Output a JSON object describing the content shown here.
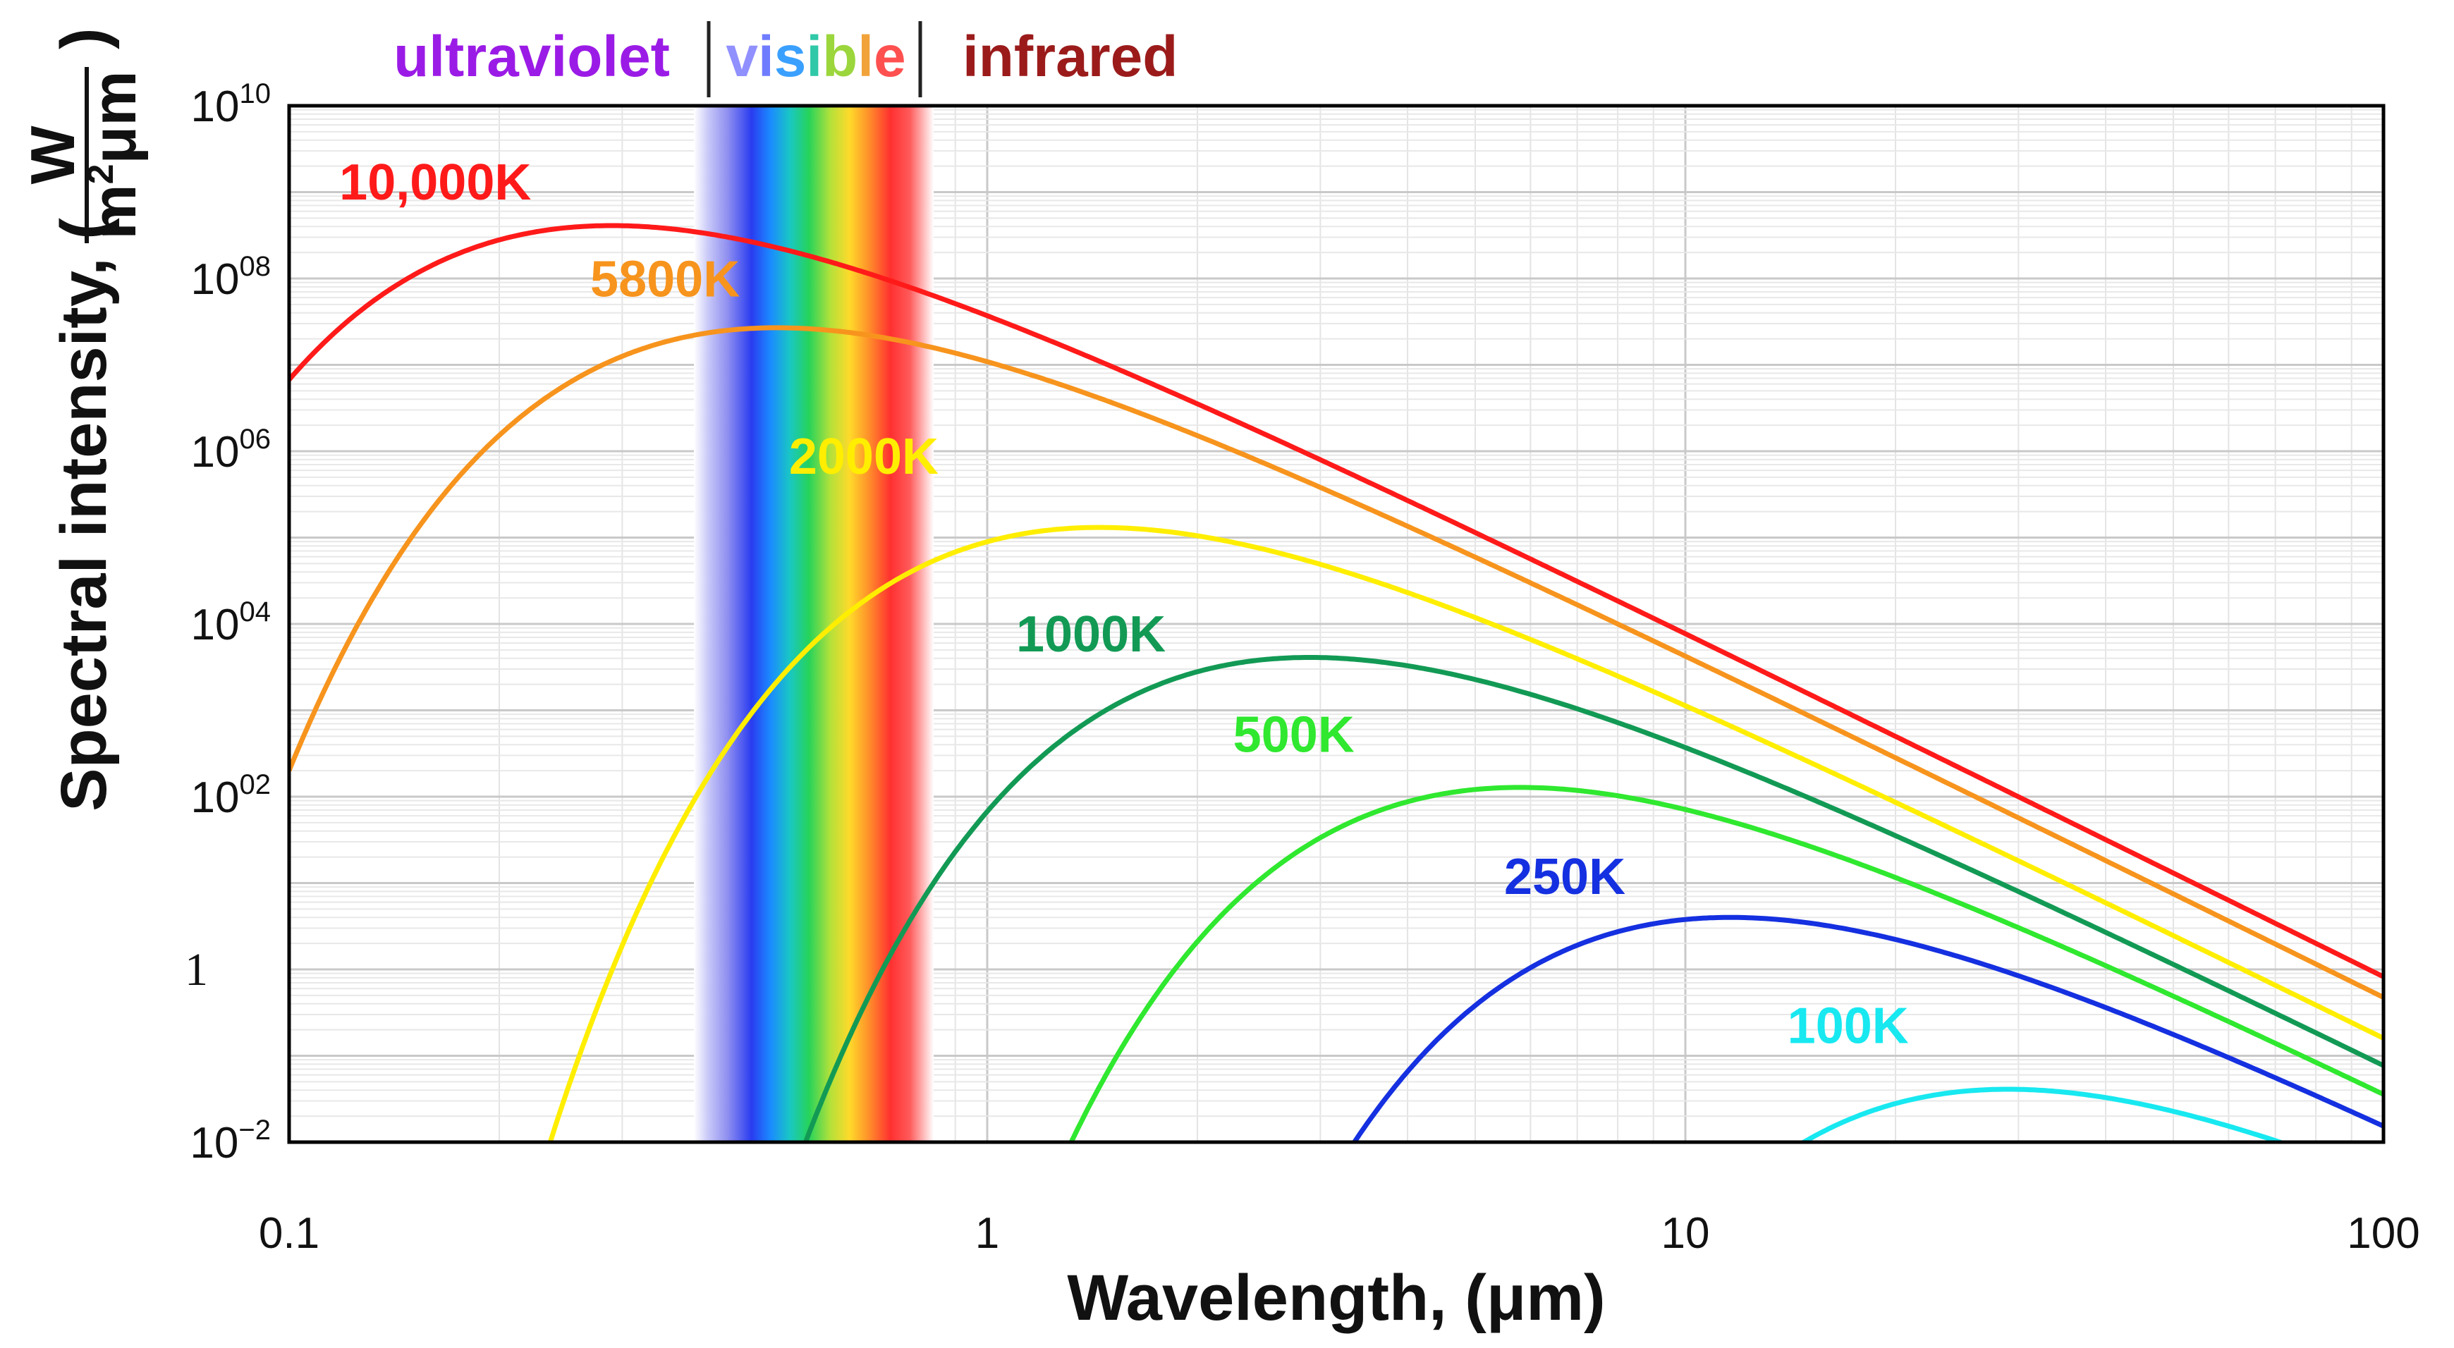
{
  "chart_data": {
    "type": "line",
    "title": "",
    "xlabel": "Wavelength, (μm)",
    "ylabel_prefix": "Spectral intensity, (",
    "ylabel_fraction_numerator": "W",
    "ylabel_fraction_denominator_base": "m",
    "ylabel_fraction_denominator_sup": "2",
    "ylabel_fraction_denominator_tail": "μm",
    "ylabel_suffix": ")",
    "xscale": "log",
    "yscale": "log",
    "xlim": [
      0.1,
      100
    ],
    "ylim": [
      0.01,
      10000000000
    ],
    "grid": true,
    "x_ticks": [
      {
        "value": 0.1,
        "label": "0.1"
      },
      {
        "value": 1,
        "label": "1"
      },
      {
        "value": 10,
        "label": "10"
      },
      {
        "value": 100,
        "label": "100"
      }
    ],
    "y_ticks": [
      {
        "value": 0.01,
        "base": "10",
        "exp": "−2"
      },
      {
        "value": 1,
        "base": "1",
        "exp": ""
      },
      {
        "value": 100,
        "base": "10",
        "exp": "02"
      },
      {
        "value": 10000,
        "base": "10",
        "exp": "04"
      },
      {
        "value": 1000000,
        "base": "10",
        "exp": "06"
      },
      {
        "value": 100000000,
        "base": "10",
        "exp": "08"
      },
      {
        "value": 10000000000,
        "base": "10",
        "exp": "10"
      }
    ],
    "bands": [
      {
        "name": "ultraviolet",
        "color": "#9b1be6"
      },
      {
        "name": "visible",
        "letters": [
          "v",
          "i",
          "s",
          "i",
          "b",
          "l",
          "e"
        ],
        "letter_colors": [
          "#9090ff",
          "#6f7cff",
          "#3aa0ff",
          "#2fc8a8",
          "#9bd63c",
          "#f1a33a",
          "#ff5050"
        ]
      },
      {
        "name": "infrared",
        "color": "#9b1b1b"
      }
    ],
    "visible_range_um": [
      0.4,
      0.8
    ],
    "series": [
      {
        "name": "10,000K",
        "temperature": 10000,
        "color": "#ff1a1a"
      },
      {
        "name": "5800K",
        "temperature": 5800,
        "color": "#f7941d"
      },
      {
        "name": "2000K",
        "temperature": 2000,
        "color": "#ffee00"
      },
      {
        "name": "1000K",
        "temperature": 1000,
        "color": "#129a55"
      },
      {
        "name": "500K",
        "temperature": 500,
        "color": "#2fe82f"
      },
      {
        "name": "250K",
        "temperature": 250,
        "color": "#1530e0"
      },
      {
        "name": "100K",
        "temperature": 100,
        "color": "#18e8f0"
      }
    ]
  }
}
